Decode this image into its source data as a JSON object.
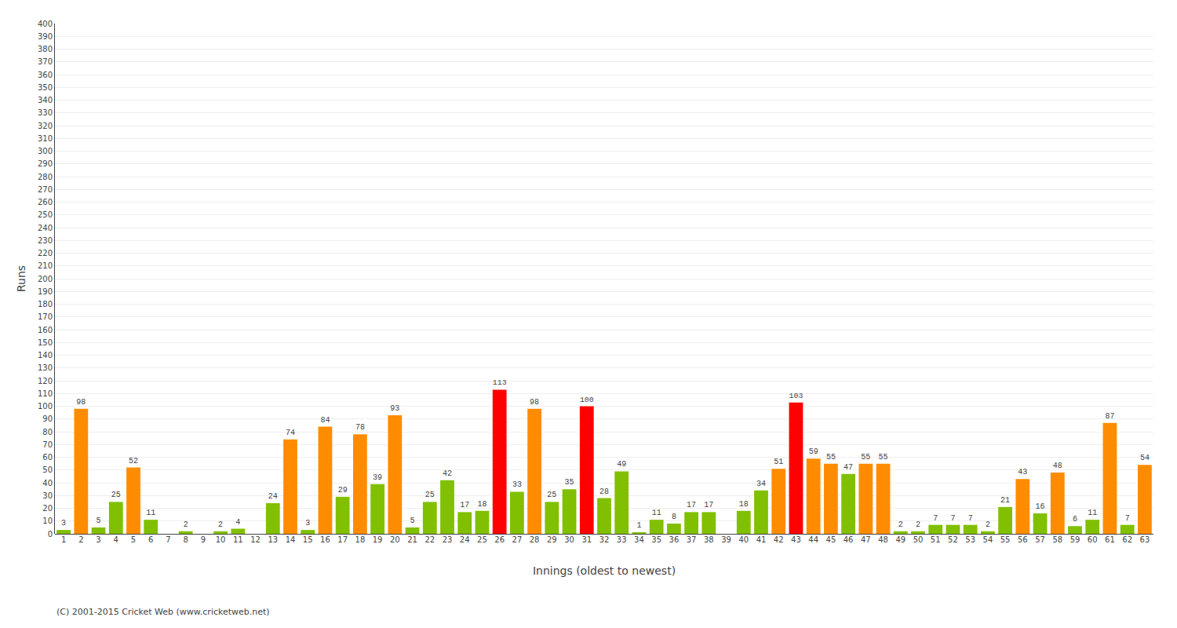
{
  "chart_data": {
    "type": "bar",
    "categories": [
      "1",
      "2",
      "3",
      "4",
      "5",
      "6",
      "7",
      "8",
      "9",
      "10",
      "11",
      "12",
      "13",
      "14",
      "15",
      "16",
      "17",
      "18",
      "19",
      "20",
      "21",
      "22",
      "23",
      "24",
      "25",
      "26",
      "27",
      "28",
      "29",
      "30",
      "31",
      "32",
      "33",
      "34",
      "35",
      "36",
      "37",
      "38",
      "39",
      "40",
      "41",
      "42",
      "43",
      "44",
      "45",
      "46",
      "47",
      "48",
      "49",
      "50",
      "51",
      "52",
      "53",
      "54",
      "55",
      "56",
      "57",
      "58",
      "59",
      "60",
      "61",
      "62",
      "63"
    ],
    "values": [
      3,
      98,
      5,
      25,
      52,
      11,
      0,
      2,
      0,
      2,
      4,
      0,
      24,
      74,
      3,
      84,
      29,
      78,
      39,
      93,
      5,
      25,
      42,
      17,
      18,
      113,
      33,
      98,
      25,
      35,
      100,
      28,
      49,
      1,
      11,
      8,
      17,
      17,
      0,
      18,
      34,
      51,
      103,
      59,
      55,
      47,
      55,
      55,
      2,
      2,
      7,
      7,
      7,
      2,
      21,
      43,
      16,
      48,
      6,
      11,
      87,
      7,
      54
    ],
    "value_labels": [
      "3",
      "98",
      "5",
      "25",
      "52",
      "11",
      null,
      "2",
      null,
      "2",
      "4",
      null,
      "24",
      "74",
      "3",
      "84",
      "29",
      "78",
      "39",
      "93",
      "5",
      "25",
      "42",
      "17",
      "18",
      "113",
      "33",
      "98",
      "25",
      "35",
      "100",
      "28",
      "49",
      "1",
      "11",
      "8",
      "17",
      "17",
      null,
      "18",
      "34",
      "51",
      "103",
      "59",
      "55",
      "47",
      "55",
      "55",
      "2",
      "2",
      "7",
      "7",
      "7",
      "2",
      "21",
      "43",
      "16",
      "48",
      "6",
      "11",
      "87",
      "7",
      "54"
    ],
    "colors": [
      "#80C000",
      "#FF8C00",
      "#80C000",
      "#80C000",
      "#FF8C00",
      "#80C000",
      "#80C000",
      "#80C000",
      "#80C000",
      "#80C000",
      "#80C000",
      "#80C000",
      "#80C000",
      "#FF8C00",
      "#80C000",
      "#FF8C00",
      "#80C000",
      "#FF8C00",
      "#80C000",
      "#FF8C00",
      "#80C000",
      "#80C000",
      "#80C000",
      "#80C000",
      "#80C000",
      "#FF0000",
      "#80C000",
      "#FF8C00",
      "#80C000",
      "#80C000",
      "#FF0000",
      "#80C000",
      "#80C000",
      "#80C000",
      "#80C000",
      "#80C000",
      "#80C000",
      "#80C000",
      "#80C000",
      "#80C000",
      "#80C000",
      "#FF8C00",
      "#FF0000",
      "#FF8C00",
      "#FF8C00",
      "#80C000",
      "#FF8C00",
      "#FF8C00",
      "#80C000",
      "#80C000",
      "#80C000",
      "#80C000",
      "#80C000",
      "#80C000",
      "#80C000",
      "#FF8C00",
      "#80C000",
      "#FF8C00",
      "#80C000",
      "#80C000",
      "#FF8C00",
      "#80C000",
      "#FF8C00"
    ],
    "x_label": "Innings (oldest to newest)",
    "y_label": "Runs",
    "ylim": [
      0,
      400
    ],
    "yticks": [
      0,
      10,
      20,
      30,
      40,
      50,
      60,
      70,
      80,
      90,
      100,
      110,
      120,
      130,
      140,
      150,
      160,
      170,
      180,
      190,
      200,
      210,
      220,
      230,
      240,
      250,
      260,
      270,
      280,
      290,
      300,
      310,
      320,
      330,
      340,
      350,
      360,
      370,
      380,
      390,
      400
    ],
    "grid": true,
    "data_labels": true,
    "annotations": [
      "(C) 2001-2015 Cricket Web (www.cricketweb.net)"
    ]
  }
}
